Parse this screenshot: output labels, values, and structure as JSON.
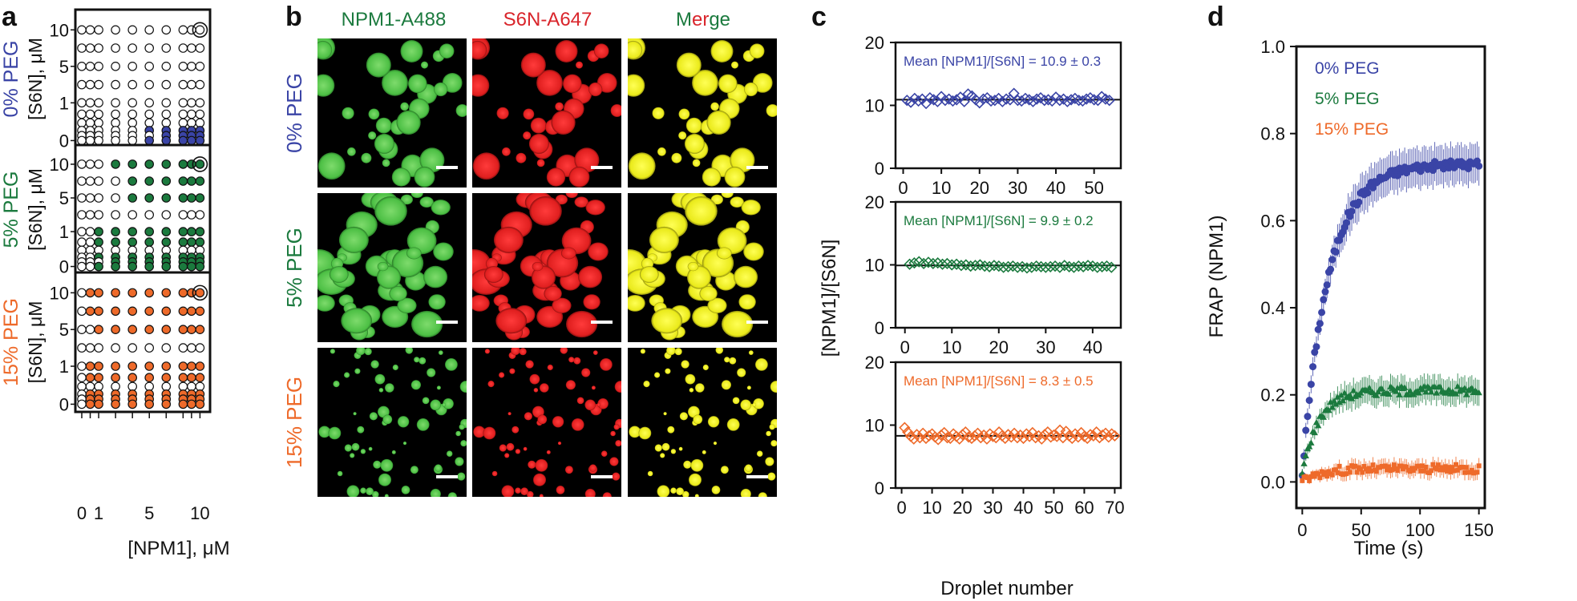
{
  "colors": {
    "blue": "#3a44a6",
    "green": "#1b7a3e",
    "orange": "#ee6a2a",
    "black": "#111111",
    "red": "#d9252b",
    "yellow": "#f3ef1a",
    "lightgreen": "#5cc556"
  },
  "panel_labels": [
    "a",
    "b",
    "c",
    "d"
  ],
  "panel_a": {
    "conditions": [
      {
        "label": "0% PEG",
        "color_key": "blue",
        "filled": [
          [
            0,
            0,
            0,
            0,
            0,
            0,
            0,
            0,
            0,
            0
          ],
          [
            0,
            0,
            0,
            0,
            0,
            0,
            0,
            0,
            0,
            0
          ],
          [
            0,
            0,
            0,
            0,
            0,
            0,
            0,
            0,
            0,
            0
          ],
          [
            0,
            0,
            0,
            0,
            0,
            0,
            0,
            0,
            0,
            0
          ],
          [
            0,
            0,
            0,
            0,
            0,
            0,
            0,
            0,
            0,
            0
          ],
          [
            0,
            0,
            0,
            0,
            0,
            0,
            0,
            0,
            0,
            0
          ],
          [
            0,
            0,
            0,
            0,
            0,
            0,
            0,
            0,
            0,
            0
          ],
          [
            0,
            0,
            0,
            0,
            0,
            1,
            1,
            1,
            1,
            1
          ],
          [
            0,
            0,
            0,
            0,
            0,
            0,
            1,
            1,
            1,
            1
          ],
          [
            0,
            0,
            0,
            0,
            0,
            1,
            1,
            1,
            1,
            1
          ]
        ]
      },
      {
        "label": "5% PEG",
        "color_key": "green",
        "filled": [
          [
            0,
            0,
            0,
            1,
            1,
            1,
            1,
            1,
            1,
            1
          ],
          [
            0,
            0,
            0,
            0,
            1,
            1,
            1,
            1,
            1,
            1
          ],
          [
            0,
            0,
            0,
            0,
            1,
            1,
            1,
            1,
            1,
            1
          ],
          [
            0,
            0,
            0,
            0,
            0,
            0,
            0,
            0,
            0,
            0
          ],
          [
            0,
            0,
            1,
            1,
            1,
            1,
            1,
            1,
            1,
            1
          ],
          [
            0,
            0,
            1,
            1,
            1,
            1,
            1,
            1,
            1,
            1
          ],
          [
            0,
            0,
            0,
            0,
            0,
            0,
            0,
            0,
            0,
            0
          ],
          [
            0,
            0,
            1,
            1,
            1,
            1,
            1,
            1,
            1,
            1
          ],
          [
            0,
            0,
            0,
            1,
            1,
            1,
            1,
            1,
            1,
            1
          ],
          [
            0,
            0,
            1,
            1,
            1,
            1,
            1,
            1,
            1,
            1
          ]
        ]
      },
      {
        "label": "15% PEG",
        "color_key": "orange",
        "filled": [
          [
            0,
            1,
            1,
            1,
            1,
            1,
            1,
            1,
            1,
            1
          ],
          [
            0,
            1,
            1,
            1,
            1,
            1,
            1,
            1,
            1,
            1
          ],
          [
            0,
            0,
            1,
            1,
            1,
            1,
            1,
            1,
            1,
            1
          ],
          [
            0,
            0,
            0,
            0,
            0,
            0,
            0,
            0,
            0,
            0
          ],
          [
            0,
            1,
            1,
            1,
            1,
            1,
            1,
            1,
            1,
            1
          ],
          [
            0,
            1,
            1,
            1,
            1,
            1,
            1,
            1,
            1,
            1
          ],
          [
            0,
            0,
            0,
            0,
            0,
            0,
            0,
            0,
            0,
            0
          ],
          [
            0,
            1,
            1,
            1,
            1,
            1,
            1,
            1,
            1,
            1
          ],
          [
            0,
            1,
            1,
            1,
            1,
            1,
            1,
            1,
            1,
            1
          ],
          [
            0,
            1,
            1,
            1,
            1,
            1,
            1,
            1,
            1,
            1
          ]
        ]
      }
    ],
    "y_ticks": [
      "10",
      "5",
      "1",
      "0"
    ],
    "x_ticks": [
      "0",
      "1",
      "5",
      "10"
    ],
    "ylabel": "[S6N], μM",
    "xlabel": "[NPM1], μM"
  },
  "panel_b": {
    "col_titles": [
      {
        "text": "NPM1-A488",
        "color_key": "green"
      },
      {
        "text": "S6N-A647",
        "color_key": "red"
      }
    ],
    "merge_title": [
      "M",
      "e",
      "r",
      "g",
      "e"
    ],
    "merge_colors": [
      "green",
      "red",
      "red",
      "green",
      "green"
    ],
    "row_labels": [
      {
        "text": "0% PEG",
        "color_key": "blue"
      },
      {
        "text": "5% PEG",
        "color_key": "green"
      },
      {
        "text": "15% PEG",
        "color_key": "orange"
      }
    ]
  },
  "chart_data": [
    {
      "type": "scatter",
      "panel": "c-top",
      "annotation": "Mean [NPM1]/[S6N] = 10.9 ± 0.3",
      "color_key": "blue",
      "mean": 10.9,
      "x": [
        1,
        2,
        3,
        4,
        5,
        6,
        7,
        8,
        9,
        10,
        11,
        12,
        13,
        14,
        15,
        16,
        17,
        18,
        19,
        20,
        21,
        22,
        23,
        24,
        25,
        26,
        27,
        28,
        29,
        30,
        31,
        32,
        33,
        34,
        35,
        36,
        37,
        38,
        39,
        40,
        41,
        42,
        43,
        44,
        45,
        46,
        47,
        48,
        49,
        50,
        51,
        52,
        53,
        54
      ],
      "y": [
        10.8,
        10.5,
        11.1,
        10.7,
        11.0,
        10.3,
        11.2,
        10.9,
        10.6,
        11.4,
        10.8,
        11.0,
        10.7,
        10.9,
        11.3,
        10.6,
        11.8,
        11.5,
        10.9,
        10.4,
        11.0,
        11.2,
        10.7,
        10.8,
        11.1,
        10.6,
        11.0,
        10.9,
        11.9,
        10.8,
        10.7,
        11.1,
        10.9,
        10.6,
        11.0,
        11.2,
        10.8,
        10.9,
        10.7,
        11.3,
        10.8,
        11.0,
        10.6,
        10.9,
        11.1,
        10.8,
        10.7,
        11.0,
        11.2,
        10.9,
        10.8,
        11.4,
        11.0,
        10.8
      ],
      "xlim": [
        -2,
        57
      ],
      "ylim": [
        0,
        20
      ],
      "xticks": [
        0,
        10,
        20,
        30,
        40,
        50
      ],
      "yticks": [
        0,
        10,
        20
      ]
    },
    {
      "type": "scatter",
      "panel": "c-middle",
      "annotation": "Mean [NPM1]/[S6N] = 9.9 ± 0.2",
      "color_key": "green",
      "mean": 9.9,
      "x": [
        1,
        2,
        3,
        4,
        5,
        6,
        7,
        8,
        9,
        10,
        11,
        12,
        13,
        14,
        15,
        16,
        17,
        18,
        19,
        20,
        21,
        22,
        23,
        24,
        25,
        26,
        27,
        28,
        29,
        30,
        31,
        32,
        33,
        34,
        35,
        36,
        37,
        38,
        39,
        40,
        41,
        42,
        43,
        44
      ],
      "y": [
        10.1,
        10.3,
        10.5,
        10.2,
        10.4,
        10.2,
        10.3,
        10.1,
        10.2,
        10.0,
        10.1,
        9.9,
        10.0,
        9.8,
        9.9,
        10.0,
        9.8,
        9.7,
        9.9,
        9.8,
        9.6,
        9.7,
        9.8,
        9.6,
        9.7,
        9.5,
        9.6,
        9.8,
        9.7,
        9.6,
        9.7,
        9.8,
        9.6,
        9.9,
        9.7,
        9.6,
        9.8,
        9.7,
        9.9,
        9.8,
        9.6,
        9.7,
        9.8,
        9.6
      ],
      "xlim": [
        -2,
        46
      ],
      "ylim": [
        0,
        20
      ],
      "xticks": [
        0,
        10,
        20,
        30,
        40
      ],
      "yticks": [
        0,
        10,
        20
      ]
    },
    {
      "type": "scatter",
      "panel": "c-bottom",
      "annotation": "Mean [NPM1]/[S6N] = 8.3 ± 0.5",
      "color_key": "orange",
      "mean": 8.3,
      "x": [
        1,
        2,
        3,
        4,
        5,
        6,
        7,
        8,
        9,
        10,
        11,
        12,
        13,
        14,
        15,
        16,
        17,
        18,
        19,
        20,
        21,
        22,
        23,
        24,
        25,
        26,
        27,
        28,
        29,
        30,
        31,
        32,
        33,
        34,
        35,
        36,
        37,
        38,
        39,
        40,
        41,
        42,
        43,
        44,
        45,
        46,
        47,
        48,
        49,
        50,
        51,
        52,
        53,
        54,
        55,
        56,
        57,
        58,
        59,
        60,
        61,
        62,
        63,
        64,
        65,
        66,
        67,
        68,
        69,
        70
      ],
      "y": [
        9.6,
        8.9,
        8.2,
        7.8,
        8.5,
        8.0,
        8.7,
        7.9,
        8.3,
        8.6,
        8.1,
        7.7,
        8.4,
        8.8,
        8.0,
        7.9,
        8.6,
        8.2,
        7.8,
        8.5,
        8.9,
        8.1,
        7.9,
        8.3,
        8.7,
        8.0,
        8.4,
        7.8,
        8.6,
        8.2,
        8.0,
        8.9,
        8.3,
        7.9,
        8.5,
        8.1,
        8.7,
        8.0,
        8.4,
        7.9,
        8.6,
        8.2,
        8.8,
        8.0,
        8.3,
        7.8,
        8.5,
        8.9,
        8.1,
        8.4,
        8.2,
        9.2,
        8.0,
        9.0,
        8.3,
        7.9,
        8.6,
        8.1,
        8.8,
        8.2,
        7.9,
        8.5,
        8.3,
        8.9,
        8.0,
        8.4,
        8.7,
        8.1,
        8.6,
        8.3
      ],
      "xlim": [
        -2,
        72
      ],
      "ylim": [
        0,
        20
      ],
      "xticks": [
        0,
        10,
        20,
        30,
        40,
        50,
        60,
        70
      ],
      "yticks": [
        0,
        10,
        20
      ]
    },
    {
      "type": "line",
      "panel": "d",
      "xlabel": "Time (s)",
      "ylabel": "FRAP (NPM1)",
      "xlim": [
        -5,
        155
      ],
      "ylim": [
        -0.06,
        1.0
      ],
      "xticks": [
        0,
        50,
        100,
        150
      ],
      "yticks": [
        0.0,
        0.2,
        0.4,
        0.6,
        0.8,
        1.0
      ],
      "series": [
        {
          "name": "0% PEG",
          "color_key": "blue",
          "marker": "circle",
          "plateau": 0.73,
          "tau": 22,
          "y0": 0.02,
          "err": 0.03
        },
        {
          "name": "5% PEG",
          "color_key": "green",
          "marker": "triangle",
          "plateau": 0.21,
          "tau": 14,
          "y0": 0.02,
          "err": 0.02
        },
        {
          "name": "15% PEG",
          "color_key": "orange",
          "marker": "square",
          "plateau": 0.03,
          "tau": 15,
          "y0": 0.0,
          "err": 0.012
        }
      ],
      "x_start": 0,
      "x_end": 150,
      "x_step": 1.5
    }
  ],
  "panel_c_ylabel": "[NPM1]/[S6N]",
  "panel_c_xlabel": "Droplet number"
}
